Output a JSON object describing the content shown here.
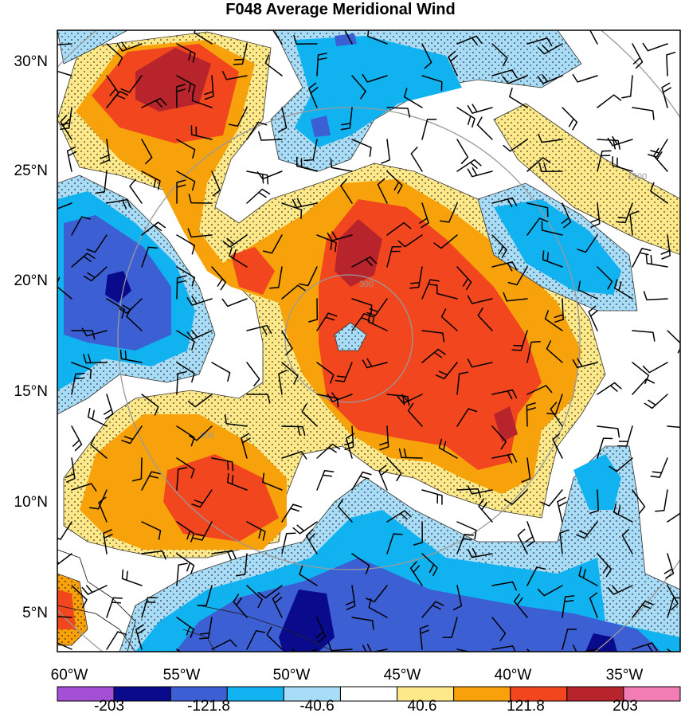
{
  "title": "F048 Average Meridional Wind",
  "lat_labels": [
    "30°N",
    "25°N",
    "20°N",
    "15°N",
    "10°N",
    "5°N"
  ],
  "lon_labels": [
    "60°W",
    "55°W",
    "50°W",
    "45°W",
    "40°W",
    "35°W"
  ],
  "colorbar": {
    "colors": [
      "#a34fd6",
      "#0a0a8c",
      "#3c5fd4",
      "#11b2f0",
      "#a9dcf6",
      "#ffffff",
      "#fde98a",
      "#f7a20a",
      "#f1461e",
      "#b8242b",
      "#f17db4"
    ],
    "labels": [
      "-203",
      "-121.8",
      "-40.6",
      "40.6",
      "121.8",
      "203"
    ]
  },
  "range_rings": [
    {
      "label": "300"
    },
    {
      "label": "900"
    },
    {
      "label": "1500"
    }
  ],
  "palette": {
    "pos1": "#fde98a",
    "pos2": "#f7a20a",
    "pos3": "#f1461e",
    "pos4": "#b8242b",
    "neg1": "#a9dcf6",
    "neg2": "#11b2f0",
    "neg3": "#3c5fd4",
    "neg4": "#0a0a8c",
    "ring": "#9a9a9a"
  }
}
